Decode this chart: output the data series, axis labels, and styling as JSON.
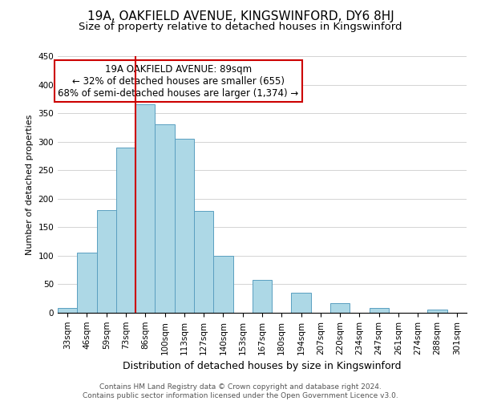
{
  "title": "19A, OAKFIELD AVENUE, KINGSWINFORD, DY6 8HJ",
  "subtitle": "Size of property relative to detached houses in Kingswinford",
  "xlabel": "Distribution of detached houses by size in Kingswinford",
  "ylabel": "Number of detached properties",
  "categories": [
    "33sqm",
    "46sqm",
    "59sqm",
    "73sqm",
    "86sqm",
    "100sqm",
    "113sqm",
    "127sqm",
    "140sqm",
    "153sqm",
    "167sqm",
    "180sqm",
    "194sqm",
    "207sqm",
    "220sqm",
    "234sqm",
    "247sqm",
    "261sqm",
    "274sqm",
    "288sqm",
    "301sqm"
  ],
  "values": [
    8,
    105,
    180,
    290,
    365,
    330,
    305,
    178,
    100,
    0,
    58,
    0,
    35,
    0,
    17,
    0,
    8,
    0,
    0,
    5,
    0
  ],
  "bar_color": "#add8e6",
  "bar_edge_color": "#5a9fc0",
  "vline_position": 4.5,
  "vline_color": "#cc0000",
  "annotation_text": "19A OAKFIELD AVENUE: 89sqm\n← 32% of detached houses are smaller (655)\n68% of semi-detached houses are larger (1,374) →",
  "annotation_box_color": "white",
  "annotation_box_edge_color": "#cc0000",
  "ylim": [
    0,
    450
  ],
  "yticks": [
    0,
    50,
    100,
    150,
    200,
    250,
    300,
    350,
    400,
    450
  ],
  "footer_text": "Contains HM Land Registry data © Crown copyright and database right 2024.\nContains public sector information licensed under the Open Government Licence v3.0.",
  "title_fontsize": 11,
  "subtitle_fontsize": 9.5,
  "xlabel_fontsize": 9,
  "ylabel_fontsize": 8,
  "tick_fontsize": 7.5,
  "annotation_fontsize": 8.5,
  "footer_fontsize": 6.5
}
